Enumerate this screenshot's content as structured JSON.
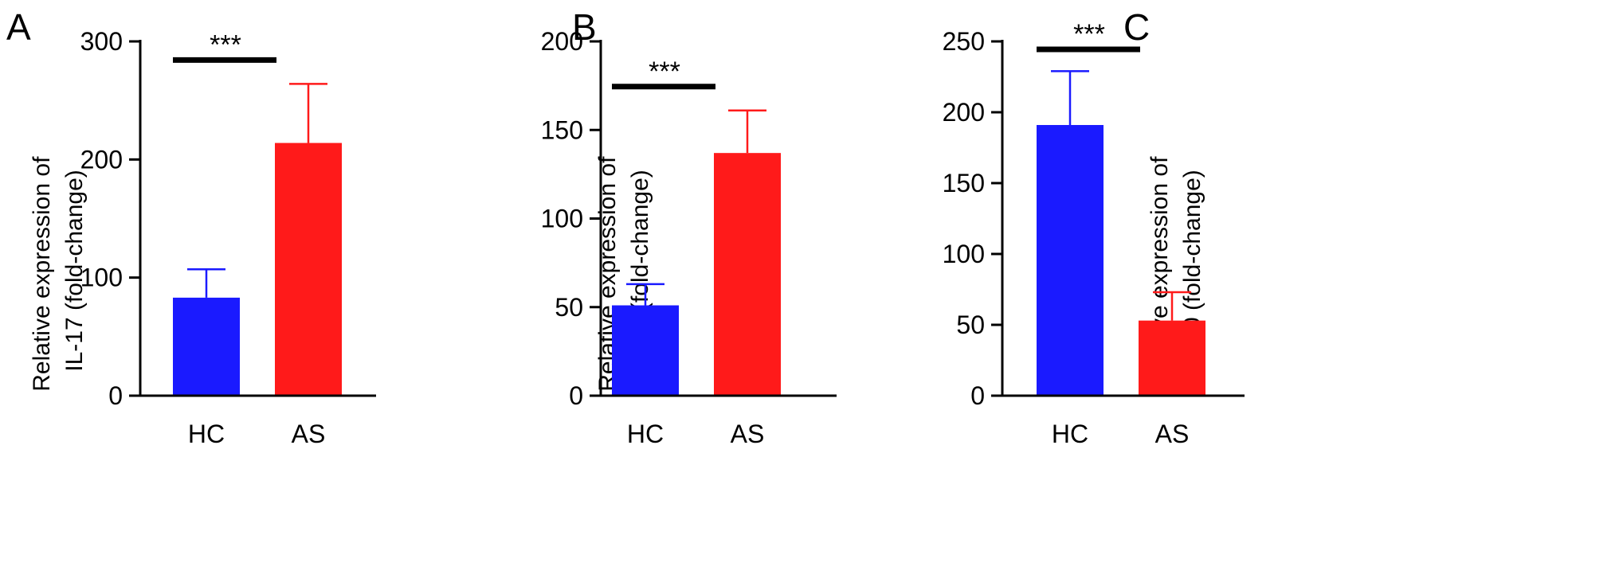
{
  "chart_data": [
    {
      "type": "bar",
      "panel": "A",
      "categories": [
        "HC",
        "AS"
      ],
      "values": [
        83,
        214
      ],
      "errors": [
        24,
        50
      ],
      "colors": [
        "#1a1aff",
        "#ff1a1a"
      ],
      "ylabel_lines": [
        "Relative expression of",
        "IL-17 (fold-change)"
      ],
      "ylim": [
        0,
        300
      ],
      "yticks": [
        0,
        100,
        200,
        300
      ],
      "significance": "***"
    },
    {
      "type": "bar",
      "panel": "B",
      "categories": [
        "HC",
        "AS"
      ],
      "values": [
        51,
        137
      ],
      "errors": [
        12,
        24
      ],
      "colors": [
        "#1a1aff",
        "#ff1a1a"
      ],
      "ylabel_lines": [
        "Relative expression of",
        "IL-23 (fold-change)"
      ],
      "ylim": [
        0,
        200
      ],
      "yticks": [
        0,
        50,
        100,
        150,
        200
      ],
      "significance": "***"
    },
    {
      "type": "bar",
      "panel": "C",
      "categories": [
        "HC",
        "AS"
      ],
      "values": [
        191,
        53
      ],
      "errors": [
        38,
        20
      ],
      "colors": [
        "#1a1aff",
        "#ff1a1a"
      ],
      "ylabel_lines": [
        "Relative expression of",
        "IL-10 (fold-change)"
      ],
      "ylim": [
        0,
        250
      ],
      "yticks": [
        0,
        50,
        100,
        150,
        200,
        250
      ],
      "significance": "***"
    }
  ]
}
